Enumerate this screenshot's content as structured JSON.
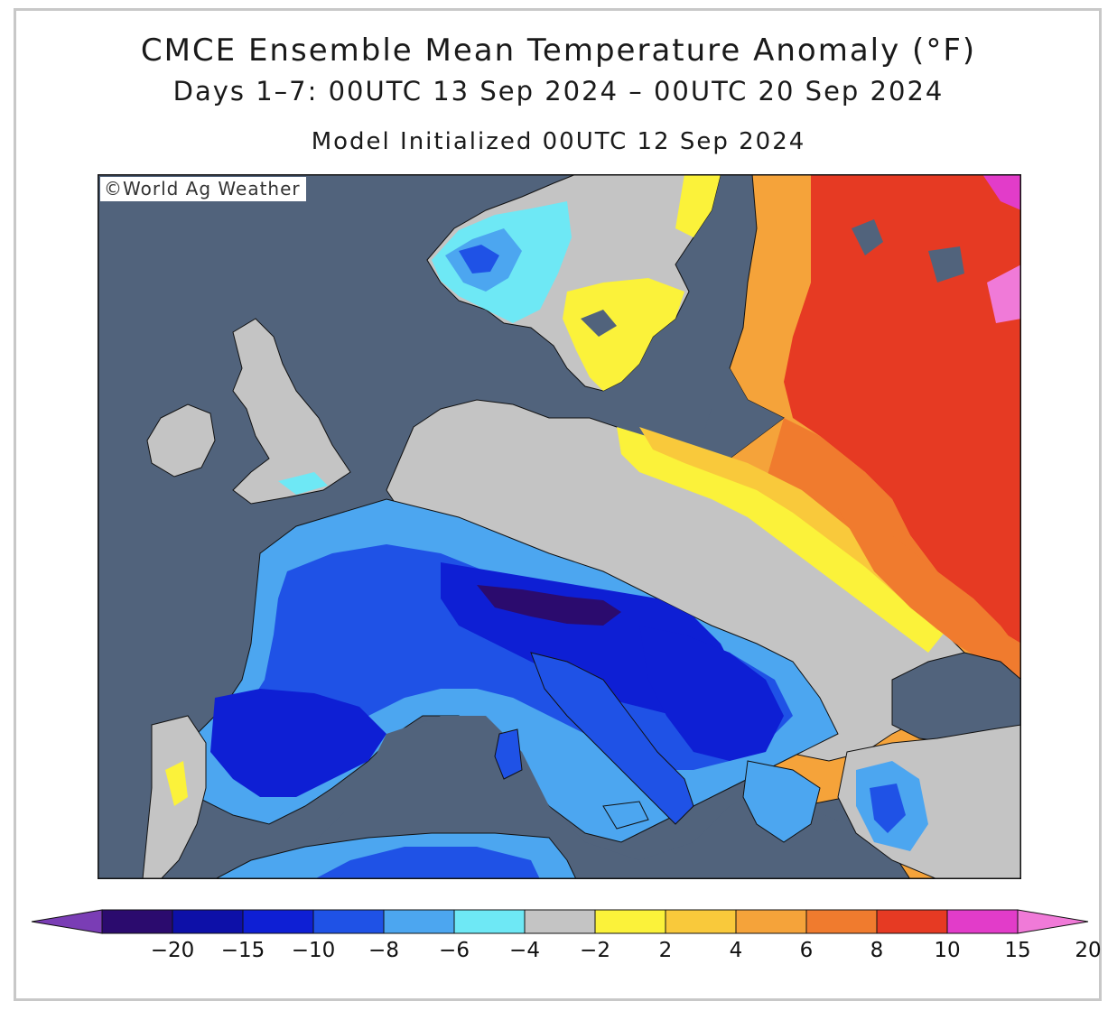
{
  "title": "CMCE Ensemble Mean Temperature Anomaly (°F)",
  "subtitle": "Days 1–7: 00UTC 13 Sep 2024 – 00UTC 20 Sep 2024",
  "init": "Model Initialized 00UTC 12 Sep 2024",
  "credit": "©World Ag Weather",
  "colors": {
    "sea": "#51637c",
    "land_neutral": "#c4c4c4",
    "coast": "#111111"
  },
  "legend": {
    "ticks": [
      "−20",
      "−15",
      "−10",
      "−8",
      "−6",
      "−4",
      "−2",
      "2",
      "4",
      "6",
      "8",
      "10",
      "15",
      "20"
    ],
    "bins": [
      {
        "color": "#7a3db5"
      },
      {
        "color": "#2b0b6e"
      },
      {
        "color": "#0d10a8"
      },
      {
        "color": "#0e1fd4"
      },
      {
        "color": "#1f52e6"
      },
      {
        "color": "#4ca6f0"
      },
      {
        "color": "#6ee8f5"
      },
      {
        "color": "#c4c4c4"
      },
      {
        "color": "#fbf23a"
      },
      {
        "color": "#f9c93b"
      },
      {
        "color": "#f5a33a"
      },
      {
        "color": "#f07b2e"
      },
      {
        "color": "#e63a23"
      },
      {
        "color": "#e23cc9"
      },
      {
        "color": "#f07ad8"
      }
    ]
  }
}
